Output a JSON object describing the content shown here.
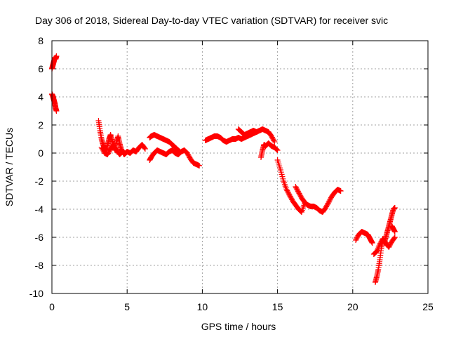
{
  "chart_data": {
    "type": "scatter",
    "title": "Day 306 of 2018, Sidereal Day-to-day VTEC variation (SDTVAR) for receiver svic",
    "xlabel": "GPS time / hours",
    "ylabel": "SDTVAR / TECUs",
    "xlim": [
      0,
      25
    ],
    "ylim": [
      -10,
      8
    ],
    "xticks": [
      0,
      5,
      10,
      15,
      20,
      25
    ],
    "yticks": [
      -10,
      -8,
      -6,
      -4,
      -2,
      0,
      2,
      4,
      6,
      8
    ],
    "grid": true,
    "marker": "plus",
    "color": "#ff0000",
    "series": [
      {
        "name": "SDTVAR",
        "segments": [
          {
            "x": [
              0.0,
              0.05,
              0.1,
              0.15,
              0.2,
              0.25,
              0.3
            ],
            "y": [
              6.0,
              6.2,
              6.4,
              6.6,
              6.8,
              6.7,
              6.9
            ]
          },
          {
            "x": [
              0.0,
              0.05,
              0.1,
              0.15,
              0.2,
              0.25,
              0.3
            ],
            "y": [
              4.2,
              4.1,
              3.9,
              3.7,
              3.5,
              3.2,
              3.0
            ]
          },
          {
            "x": [
              3.1,
              3.2,
              3.3,
              3.4,
              3.5,
              3.6,
              3.7,
              3.8,
              3.9,
              4.0,
              4.1,
              4.2,
              4.3,
              4.4,
              4.5,
              4.6,
              4.7,
              4.8,
              4.9,
              5.0,
              5.2,
              5.4,
              5.6,
              5.8,
              6.0,
              6.2
            ],
            "y": [
              2.3,
              1.6,
              1.0,
              0.6,
              0.4,
              0.2,
              0.6,
              1.0,
              1.3,
              0.9,
              0.5,
              0.2,
              0.8,
              1.2,
              0.7,
              0.3,
              0.1,
              -0.1,
              0.0,
              0.1,
              0.0,
              0.2,
              0.1,
              0.4,
              0.6,
              0.3
            ]
          },
          {
            "x": [
              3.3,
              3.5,
              3.7,
              3.9,
              4.1,
              4.3,
              4.5,
              4.7
            ],
            "y": [
              0.4,
              0.0,
              -0.1,
              0.3,
              0.6,
              0.2,
              -0.1,
              0.1
            ]
          },
          {
            "x": [
              6.5,
              6.6,
              6.8,
              7.0,
              7.2,
              7.4,
              7.6,
              7.8,
              8.0,
              8.2,
              8.4,
              8.5
            ],
            "y": [
              1.1,
              1.2,
              1.3,
              1.2,
              1.1,
              1.0,
              0.9,
              0.8,
              0.6,
              0.4,
              0.2,
              0.1
            ]
          },
          {
            "x": [
              6.5,
              6.6,
              6.8,
              7.0,
              7.2,
              7.4,
              7.6,
              7.8,
              8.0,
              8.2,
              8.4,
              8.6,
              8.8,
              9.0,
              9.2,
              9.4,
              9.6,
              9.8
            ],
            "y": [
              -0.5,
              -0.3,
              0.0,
              0.2,
              0.1,
              0.0,
              -0.1,
              0.1,
              0.2,
              0.0,
              -0.1,
              0.1,
              0.2,
              0.0,
              -0.4,
              -0.7,
              -0.8,
              -0.9
            ]
          },
          {
            "x": [
              10.2,
              10.4,
              10.6,
              10.8,
              11.0,
              11.2,
              11.4,
              11.6,
              11.8,
              12.0,
              12.2,
              12.4,
              12.6,
              12.8,
              13.0,
              13.2,
              13.4,
              13.6,
              13.8,
              14.0,
              14.2,
              14.4,
              14.6,
              14.8
            ],
            "y": [
              0.9,
              1.0,
              1.1,
              1.2,
              1.2,
              1.1,
              0.9,
              0.8,
              0.9,
              1.0,
              1.0,
              1.1,
              1.0,
              1.1,
              1.2,
              1.3,
              1.4,
              1.5,
              1.6,
              1.7,
              1.6,
              1.5,
              1.2,
              0.8
            ]
          },
          {
            "x": [
              12.4,
              12.6,
              12.8,
              13.0,
              13.2,
              13.4,
              13.6
            ],
            "y": [
              1.7,
              1.5,
              1.3,
              1.4,
              1.5,
              1.6,
              1.5
            ]
          },
          {
            "x": [
              13.9,
              14.0,
              14.1,
              14.2,
              14.4,
              14.6,
              14.8,
              15.0
            ],
            "y": [
              -0.3,
              0.2,
              0.6,
              0.5,
              0.7,
              0.5,
              0.4,
              0.2
            ]
          },
          {
            "x": [
              15.0,
              15.2,
              15.4,
              15.6,
              15.8,
              16.0,
              16.2,
              16.4,
              16.6,
              16.8
            ],
            "y": [
              -0.5,
              -1.2,
              -2.0,
              -2.6,
              -3.0,
              -3.4,
              -3.7,
              -4.0,
              -4.2,
              -3.6
            ]
          },
          {
            "x": [
              16.2,
              16.4,
              16.6,
              16.8,
              17.0,
              17.2,
              17.4,
              17.6,
              17.8,
              18.0,
              18.2,
              18.4,
              18.6,
              18.8,
              19.0,
              19.2
            ],
            "y": [
              -2.4,
              -2.8,
              -3.2,
              -3.5,
              -3.7,
              -3.8,
              -3.8,
              -3.9,
              -4.1,
              -4.2,
              -3.9,
              -3.5,
              -3.1,
              -2.8,
              -2.6,
              -2.7
            ]
          },
          {
            "x": [
              20.2,
              20.4,
              20.6,
              20.8,
              21.0,
              21.1,
              21.2,
              21.3
            ],
            "y": [
              -6.2,
              -5.8,
              -5.6,
              -5.7,
              -5.8,
              -6.0,
              -6.2,
              -6.4
            ]
          },
          {
            "x": [
              21.5,
              21.6,
              21.7,
              21.8,
              21.9,
              22.0,
              22.1,
              22.2,
              22.3,
              22.4,
              22.5,
              22.6,
              22.7,
              22.8
            ],
            "y": [
              -9.2,
              -8.8,
              -8.3,
              -7.6,
              -6.8,
              -6.2,
              -6.4,
              -6.0,
              -5.6,
              -5.2,
              -4.8,
              -4.4,
              -4.0,
              -3.9
            ]
          },
          {
            "x": [
              21.4,
              21.6,
              21.8,
              22.0,
              22.2,
              22.4,
              22.6,
              22.8
            ],
            "y": [
              -7.2,
              -7.0,
              -6.5,
              -6.1,
              -6.4,
              -6.7,
              -6.3,
              -6.0
            ]
          },
          {
            "x": [
              22.6,
              22.7,
              22.8
            ],
            "y": [
              -5.2,
              -5.4,
              -5.6
            ]
          }
        ]
      }
    ]
  }
}
